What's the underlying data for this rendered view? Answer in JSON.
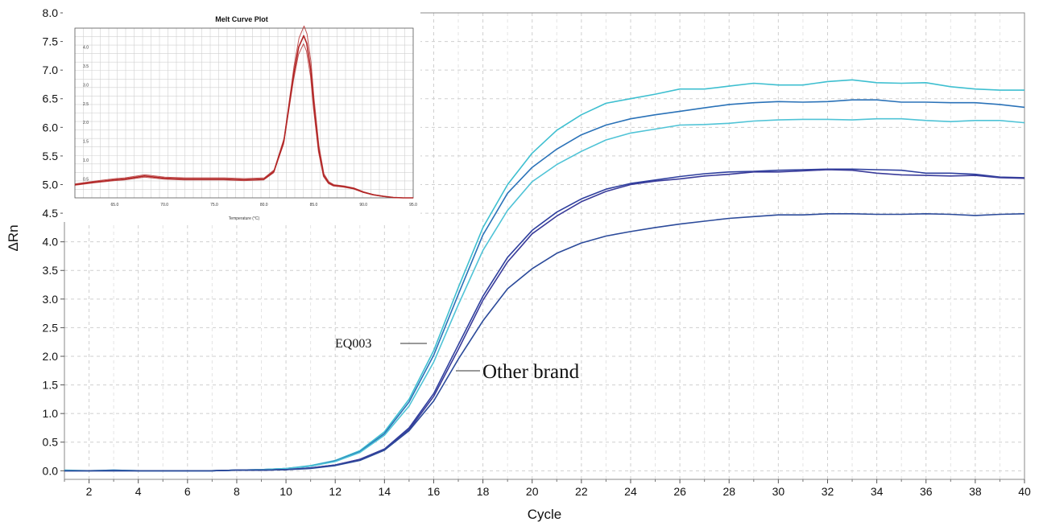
{
  "chart_data": [
    {
      "type": "line",
      "title": "",
      "xlabel": "Cycle",
      "ylabel": "ΔRn",
      "xlim": [
        1,
        40
      ],
      "ylim": [
        -0.15,
        8.0
      ],
      "x_ticks": [
        2,
        4,
        6,
        8,
        10,
        12,
        14,
        16,
        18,
        20,
        22,
        24,
        26,
        28,
        30,
        32,
        34,
        36,
        38,
        40
      ],
      "x_tick_labels": [
        "2",
        "4",
        "6",
        "8",
        "10",
        "12",
        "14",
        "16",
        "18",
        "20",
        "22",
        "24",
        "26",
        "28",
        "30",
        "32",
        "34",
        "36",
        "38",
        "40"
      ],
      "y_ticks": [
        0.0,
        0.5,
        1.0,
        1.5,
        2.0,
        2.5,
        3.0,
        3.5,
        4.0,
        4.5,
        5.0,
        5.5,
        6.0,
        6.5,
        7.0,
        7.5,
        8.0
      ],
      "y_tick_labels": [
        "0.0",
        "0.5",
        "1.0",
        "1.5",
        "2.0",
        "2.5",
        "3.0",
        "3.5",
        "4.0",
        "4.5",
        "5.0",
        "5.5",
        "6.0",
        "6.5",
        "7.0",
        "7.5",
        "8.0"
      ],
      "grid": true,
      "x": [
        1,
        2,
        3,
        4,
        5,
        6,
        7,
        8,
        9,
        10,
        11,
        12,
        13,
        14,
        15,
        16,
        17,
        18,
        19,
        20,
        21,
        22,
        23,
        24,
        25,
        26,
        27,
        28,
        29,
        30,
        31,
        32,
        33,
        34,
        35,
        36,
        37,
        38,
        39,
        40
      ],
      "series": [
        {
          "color": "#3ebfd0",
          "values": [
            0.01,
            0.0,
            0.01,
            0.0,
            0.0,
            0.0,
            0.0,
            0.01,
            0.02,
            0.04,
            0.09,
            0.18,
            0.35,
            0.68,
            1.25,
            2.1,
            3.2,
            4.25,
            5.0,
            5.55,
            5.95,
            6.22,
            6.42,
            6.5,
            6.58,
            6.67,
            6.67,
            6.72,
            6.77,
            6.74,
            6.74,
            6.8,
            6.83,
            6.78,
            6.77,
            6.78,
            6.71,
            6.67,
            6.65,
            6.65
          ]
        },
        {
          "color": "#2a72b8",
          "values": [
            0.0,
            0.0,
            0.01,
            0.0,
            0.0,
            0.0,
            0.0,
            0.01,
            0.02,
            0.04,
            0.08,
            0.17,
            0.33,
            0.65,
            1.2,
            2.02,
            3.08,
            4.12,
            4.85,
            5.3,
            5.62,
            5.87,
            6.04,
            6.15,
            6.22,
            6.28,
            6.34,
            6.4,
            6.43,
            6.45,
            6.44,
            6.45,
            6.48,
            6.48,
            6.44,
            6.44,
            6.43,
            6.43,
            6.4,
            6.35
          ]
        },
        {
          "color": "#4fc3d6",
          "values": [
            0.0,
            0.0,
            0.0,
            0.0,
            0.0,
            0.0,
            0.0,
            0.01,
            0.02,
            0.04,
            0.08,
            0.16,
            0.32,
            0.62,
            1.13,
            1.9,
            2.9,
            3.85,
            4.55,
            5.05,
            5.35,
            5.58,
            5.78,
            5.9,
            5.97,
            6.04,
            6.05,
            6.07,
            6.11,
            6.13,
            6.14,
            6.14,
            6.13,
            6.15,
            6.15,
            6.12,
            6.1,
            6.12,
            6.12,
            6.08
          ]
        },
        {
          "color": "#2e3f9e",
          "values": [
            0.0,
            0.0,
            0.0,
            0.0,
            0.0,
            0.0,
            0.0,
            0.01,
            0.01,
            0.02,
            0.05,
            0.1,
            0.2,
            0.38,
            0.75,
            1.35,
            2.2,
            3.05,
            3.73,
            4.2,
            4.52,
            4.75,
            4.92,
            5.02,
            5.08,
            5.14,
            5.19,
            5.22,
            5.23,
            5.25,
            5.26,
            5.27,
            5.27,
            5.26,
            5.25,
            5.2,
            5.2,
            5.18,
            5.13,
            5.12
          ]
        },
        {
          "color": "#3a3c9a",
          "values": [
            0.0,
            0.0,
            0.0,
            0.0,
            0.0,
            0.0,
            0.0,
            0.01,
            0.01,
            0.02,
            0.05,
            0.1,
            0.2,
            0.37,
            0.72,
            1.3,
            2.12,
            2.98,
            3.65,
            4.14,
            4.45,
            4.7,
            4.88,
            5.0,
            5.06,
            5.1,
            5.15,
            5.18,
            5.22,
            5.22,
            5.24,
            5.26,
            5.25,
            5.2,
            5.17,
            5.16,
            5.15,
            5.16,
            5.12,
            5.11
          ]
        },
        {
          "color": "#2b4a9a",
          "values": [
            0.0,
            0.0,
            0.0,
            0.0,
            0.0,
            0.0,
            0.0,
            0.01,
            0.01,
            0.02,
            0.04,
            0.09,
            0.18,
            0.36,
            0.7,
            1.22,
            1.95,
            2.62,
            3.18,
            3.53,
            3.8,
            3.98,
            4.1,
            4.18,
            4.25,
            4.31,
            4.36,
            4.41,
            4.44,
            4.47,
            4.47,
            4.49,
            4.49,
            4.48,
            4.48,
            4.49,
            4.48,
            4.46,
            4.48,
            4.49
          ]
        }
      ],
      "annotations": [
        {
          "text": "EQ003",
          "x": 16,
          "y": 2.1
        },
        {
          "text": "Other brand",
          "x": 17,
          "y": 1.7
        }
      ]
    },
    {
      "type": "line",
      "title": "Melt Curve Plot",
      "xlabel": "Temperature (°C)",
      "ylabel": "",
      "xlim": [
        61,
        95
      ],
      "ylim": [
        0.0,
        4.5
      ],
      "x_ticks": [
        65,
        70,
        75,
        80,
        85,
        90,
        95
      ],
      "x_tick_labels": [
        "65.0",
        "70.0",
        "75.0",
        "80.0",
        "85.0",
        "90.0",
        "95.0"
      ],
      "y_ticks": [
        0.5,
        1.0,
        1.5,
        2.0,
        2.5,
        3.0,
        3.5,
        4.0
      ],
      "y_tick_labels": [
        "0.5",
        "1.0",
        "1.5",
        "2.0",
        "2.5",
        "3.0",
        "3.5",
        "4.0"
      ],
      "grid": true,
      "series": [
        {
          "color": "#b22525",
          "x": [
            61,
            63,
            65,
            66,
            68,
            70,
            72,
            74,
            76,
            78,
            80,
            81,
            82,
            82.5,
            83,
            83.5,
            84,
            84.3,
            84.7,
            85,
            85.5,
            86,
            86.5,
            87,
            88,
            89,
            90,
            91,
            92,
            93,
            94,
            95
          ],
          "values": [
            0.35,
            0.42,
            0.48,
            0.5,
            0.58,
            0.52,
            0.5,
            0.5,
            0.5,
            0.48,
            0.5,
            0.7,
            1.5,
            2.4,
            3.3,
            4.0,
            4.3,
            4.1,
            3.4,
            2.5,
            1.3,
            0.6,
            0.4,
            0.33,
            0.3,
            0.25,
            0.15,
            0.08,
            0.04,
            0.01,
            0.0,
            0.0
          ]
        }
      ]
    }
  ]
}
